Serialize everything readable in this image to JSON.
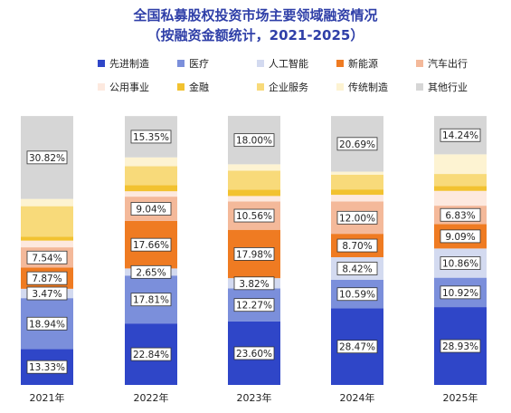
{
  "chart_data": {
    "type": "bar",
    "stacked": true,
    "normalized": true,
    "title": "全国私募股权投资市场主要领域融资情况",
    "subtitle": "（按融资金额统计，2021-2025）",
    "categories": [
      "2021年",
      "2022年",
      "2023年",
      "2024年",
      "2025年"
    ],
    "ylim": [
      0,
      100
    ],
    "grid": false,
    "legend_position": "top",
    "series": [
      {
        "name": "先进制造",
        "color": "#2f46c8",
        "values": [
          13.33,
          22.84,
          23.6,
          28.47,
          28.93
        ]
      },
      {
        "name": "医疗",
        "color": "#7b8fdb",
        "values": [
          18.94,
          17.81,
          12.27,
          10.59,
          10.92
        ]
      },
      {
        "name": "人工智能",
        "color": "#d3daf0",
        "values": [
          3.47,
          2.65,
          3.82,
          8.42,
          10.86
        ]
      },
      {
        "name": "新能源",
        "color": "#ef7b22",
        "values": [
          7.87,
          17.66,
          17.98,
          8.7,
          9.09
        ]
      },
      {
        "name": "汽车出行",
        "color": "#f4b99a",
        "values": [
          7.54,
          9.04,
          10.56,
          12.0,
          6.83
        ]
      },
      {
        "name": "公用事业",
        "color": "#fde9df",
        "values": [
          2.5,
          2.0,
          2.0,
          2.5,
          5.5
        ]
      },
      {
        "name": "金融",
        "color": "#f2c230",
        "values": [
          1.5,
          2.3,
          2.4,
          2.0,
          1.8
        ]
      },
      {
        "name": "企业服务",
        "color": "#f8da7a",
        "values": [
          11.3,
          7.0,
          7.0,
          5.5,
          4.5
        ]
      },
      {
        "name": "传统制造",
        "color": "#fdf3d2",
        "values": [
          2.7,
          3.3,
          2.4,
          1.1,
          7.3
        ]
      },
      {
        "name": "其他行业",
        "color": "#d6d6d6",
        "values": [
          30.82,
          15.35,
          18.0,
          20.69,
          14.24
        ]
      }
    ],
    "data_labels": [
      {
        "category": 0,
        "series": 0,
        "text": "13.33%"
      },
      {
        "category": 0,
        "series": 1,
        "text": "18.94%"
      },
      {
        "category": 0,
        "series": 2,
        "text": "3.47%"
      },
      {
        "category": 0,
        "series": 3,
        "text": "7.87%"
      },
      {
        "category": 0,
        "series": 4,
        "text": "7.54%"
      },
      {
        "category": 0,
        "series": 9,
        "text": "30.82%"
      },
      {
        "category": 1,
        "series": 0,
        "text": "22.84%"
      },
      {
        "category": 1,
        "series": 1,
        "text": "17.81%"
      },
      {
        "category": 1,
        "series": 2,
        "text": "2.65%"
      },
      {
        "category": 1,
        "series": 3,
        "text": "17.66%"
      },
      {
        "category": 1,
        "series": 4,
        "text": "9.04%"
      },
      {
        "category": 1,
        "series": 9,
        "text": "15.35%"
      },
      {
        "category": 2,
        "series": 0,
        "text": "23.60%"
      },
      {
        "category": 2,
        "series": 1,
        "text": "12.27%"
      },
      {
        "category": 2,
        "series": 2,
        "text": "3.82%"
      },
      {
        "category": 2,
        "series": 3,
        "text": "17.98%"
      },
      {
        "category": 2,
        "series": 4,
        "text": "10.56%"
      },
      {
        "category": 2,
        "series": 9,
        "text": "18.00%"
      },
      {
        "category": 3,
        "series": 0,
        "text": "28.47%"
      },
      {
        "category": 3,
        "series": 1,
        "text": "10.59%"
      },
      {
        "category": 3,
        "series": 2,
        "text": "8.42%"
      },
      {
        "category": 3,
        "series": 3,
        "text": "8.70%"
      },
      {
        "category": 3,
        "series": 4,
        "text": "12.00%"
      },
      {
        "category": 3,
        "series": 9,
        "text": "20.69%"
      },
      {
        "category": 4,
        "series": 0,
        "text": "28.93%"
      },
      {
        "category": 4,
        "series": 1,
        "text": "10.92%"
      },
      {
        "category": 4,
        "series": 2,
        "text": "10.86%"
      },
      {
        "category": 4,
        "series": 3,
        "text": "9.09%"
      },
      {
        "category": 4,
        "series": 4,
        "text": "6.83%"
      },
      {
        "category": 4,
        "series": 9,
        "text": "14.24%"
      }
    ]
  }
}
